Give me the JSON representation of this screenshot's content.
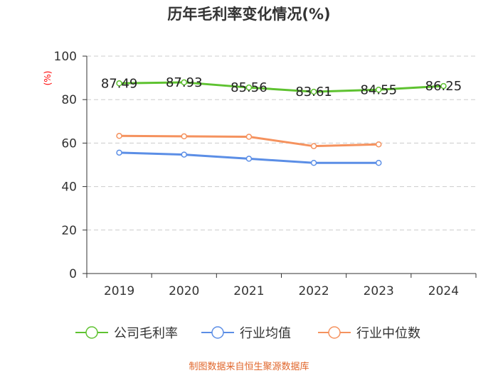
{
  "chart_data": {
    "type": "line",
    "title": "历年毛利率变化情况(%)",
    "ylabel": "(%)",
    "ylim": [
      0,
      100
    ],
    "yticks": [
      0,
      20,
      40,
      60,
      80,
      100
    ],
    "categories": [
      "2019",
      "2020",
      "2021",
      "2022",
      "2023",
      "2024"
    ],
    "series": [
      {
        "name": "公司毛利率",
        "color": "#5ec230",
        "values": [
          87.49,
          87.93,
          85.56,
          83.61,
          84.55,
          86.25
        ],
        "labels": [
          "87.49",
          "87.93",
          "85.56",
          "83.61",
          "84.55",
          "86.25"
        ]
      },
      {
        "name": "行业均值",
        "color": "#5b8ee6",
        "values": [
          55.6,
          54.7,
          52.8,
          50.9,
          50.9,
          null
        ]
      },
      {
        "name": "行业中位数",
        "color": "#f5925e",
        "values": [
          63.3,
          63.1,
          62.9,
          58.6,
          59.4,
          null
        ]
      }
    ],
    "legend_position": "bottom",
    "grid": true,
    "source": "制图数据来自恒生聚源数据库"
  },
  "colors": {
    "axis": "#333333",
    "grid": "#cccccc",
    "ylabel": "#ff0000",
    "source": "#e0662b"
  }
}
